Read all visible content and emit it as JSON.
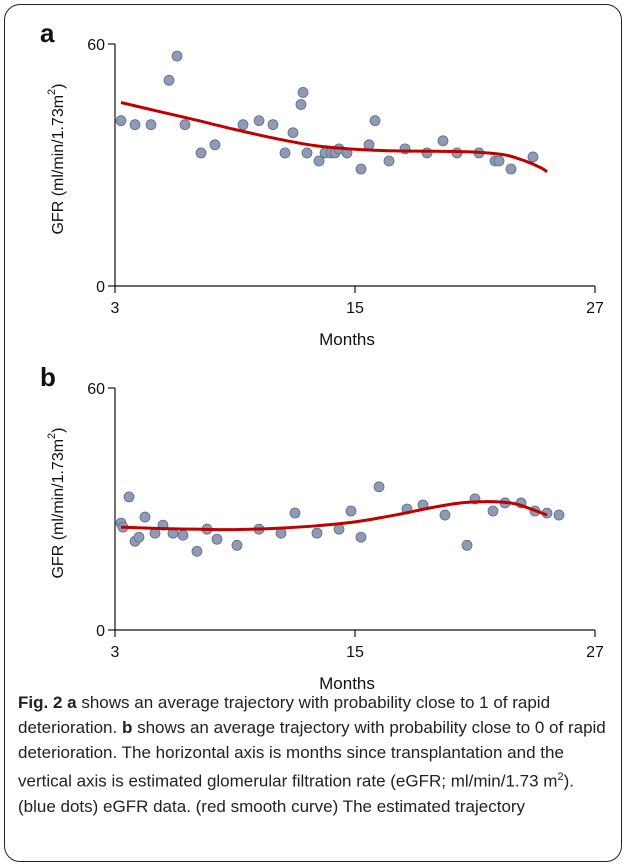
{
  "chart_data": [
    {
      "type": "scatter",
      "panel_label": "a",
      "xlabel": "Months",
      "ylabel": "GFR (ml/min/1.73m",
      "ylabel_sup": "2",
      "ylabel_close": ")",
      "xlim": [
        3,
        27
      ],
      "ylim": [
        0,
        60
      ],
      "xticks": [
        3,
        15,
        27
      ],
      "yticks": [
        0,
        60
      ],
      "point_color": "#8d9bb5",
      "curve_color": "#c00000",
      "series": [
        {
          "kind": "points",
          "x": [
            3.3,
            4.0,
            4.8,
            5.7,
            6.1,
            6.5,
            7.3,
            8.0,
            9.4,
            10.2,
            10.9,
            11.5,
            11.9,
            12.3,
            12.4,
            12.6,
            13.2,
            13.5,
            13.8,
            14.0,
            14.2,
            14.6,
            15.3,
            15.7,
            16.0,
            16.7,
            17.5,
            18.6,
            19.4,
            20.1,
            21.2,
            22.0,
            22.2,
            22.8,
            23.9
          ],
          "y": [
            41,
            40,
            40,
            51,
            57,
            40,
            33,
            35,
            40,
            41,
            40,
            33,
            38,
            45,
            48,
            33,
            31,
            33,
            33,
            33,
            34,
            33,
            29,
            35,
            41,
            31,
            34,
            33,
            36,
            33,
            33,
            31,
            31,
            29,
            32
          ]
        },
        {
          "kind": "curve",
          "x": [
            3.3,
            5,
            7,
            9,
            11,
            13,
            15,
            17,
            19,
            21,
            22.5,
            23.5,
            24.3,
            24.6
          ],
          "y": [
            45.5,
            43.5,
            41.2,
            38.8,
            36.6,
            34.8,
            33.9,
            33.5,
            33.4,
            33.2,
            32.5,
            31.0,
            29.3,
            28.3
          ]
        }
      ]
    },
    {
      "type": "scatter",
      "panel_label": "b",
      "xlabel": "Months",
      "ylabel": "GFR (ml/min/1.73m",
      "ylabel_sup": "2",
      "ylabel_close": ")",
      "xlim": [
        3,
        27
      ],
      "ylim": [
        0,
        60
      ],
      "xticks": [
        3,
        15,
        27
      ],
      "yticks": [
        0,
        60
      ],
      "point_color": "#8d9bb5",
      "curve_color": "#c00000",
      "series": [
        {
          "kind": "points",
          "x": [
            3.3,
            3.4,
            3.7,
            4.0,
            4.2,
            4.5,
            5.0,
            5.4,
            5.9,
            6.4,
            7.1,
            7.6,
            8.1,
            9.1,
            10.2,
            11.3,
            12.0,
            13.1,
            14.2,
            14.8,
            15.3,
            16.2,
            17.6,
            18.4,
            19.5,
            20.6,
            21.0,
            21.9,
            22.5,
            23.3,
            24.0,
            24.6,
            25.2
          ],
          "y": [
            26.5,
            25.5,
            33,
            22,
            23,
            28,
            24,
            26,
            24,
            23.5,
            19.5,
            25,
            22.5,
            21,
            25,
            24,
            29,
            24,
            25,
            29.5,
            23,
            35.5,
            30,
            31,
            28.5,
            21,
            32.5,
            29.5,
            31.5,
            31.5,
            29.5,
            29,
            28.5
          ]
        },
        {
          "kind": "curve",
          "x": [
            3.3,
            5,
            7,
            9,
            11,
            13,
            15,
            17,
            19,
            20.5,
            22,
            23,
            23.8,
            24.6
          ],
          "y": [
            25.5,
            25.2,
            25.0,
            24.9,
            25.2,
            25.8,
            26.8,
            28.5,
            30.5,
            31.6,
            31.8,
            31.3,
            30.0,
            28.5
          ]
        }
      ]
    }
  ],
  "caption": {
    "fig_label": "Fig. 2",
    "a_label": "a",
    "a_text": " shows an average trajectory with probability close to 1 of rapid deterioration. ",
    "b_label": "b",
    "b_text": " shows an average trajectory with probability close to 0 of rapid deterioration. The horizontal axis is months since transplantation and the vertical axis is estimated glomerular filtration rate (eGFR; ml/min/1.73 m",
    "b_sup": "2",
    "b_tail": "). (blue dots) eGFR data. (red smooth curve) The estimated trajectory"
  }
}
